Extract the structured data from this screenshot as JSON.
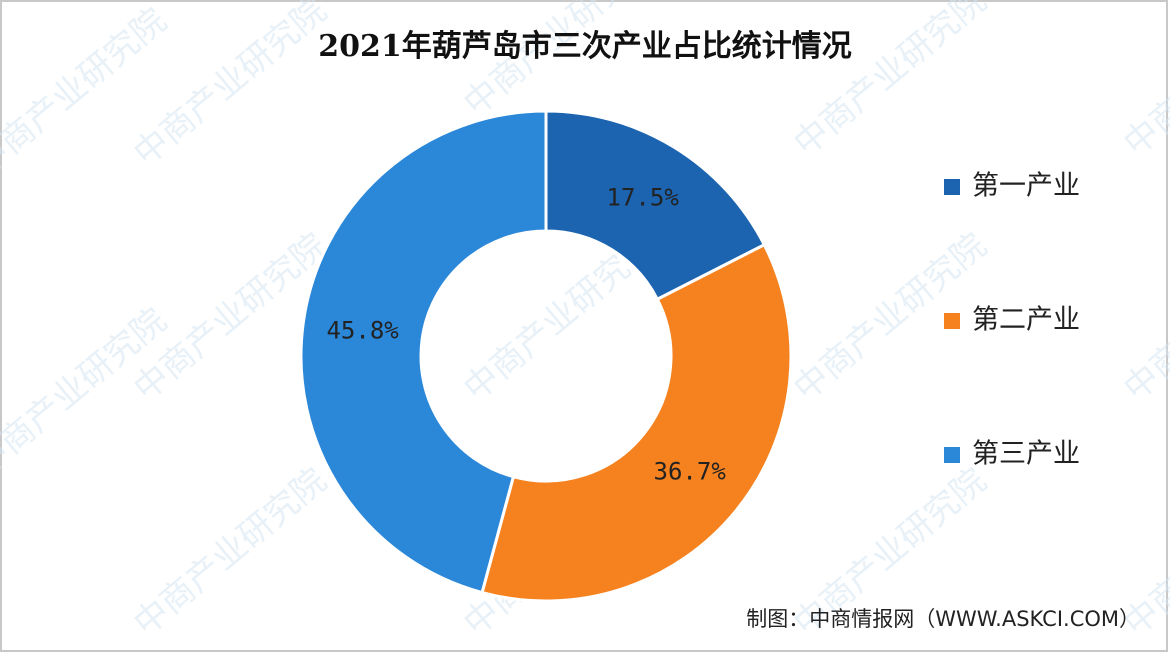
{
  "chart_data": {
    "type": "donut",
    "title": "2021年葫芦岛市三次产业占比统计情况",
    "categories": [
      "第一产业",
      "第二产业",
      "第三产业"
    ],
    "values": [
      17.5,
      36.7,
      45.8
    ],
    "value_labels": [
      "17.5%",
      "36.7%",
      "45.8%"
    ],
    "colors": [
      "#1c64b0",
      "#f5821f",
      "#2b87d8"
    ],
    "legend": "right",
    "source": "制图：中商情报网（WWW.ASKCI.COM）",
    "watermark": "中商产业研究院"
  }
}
